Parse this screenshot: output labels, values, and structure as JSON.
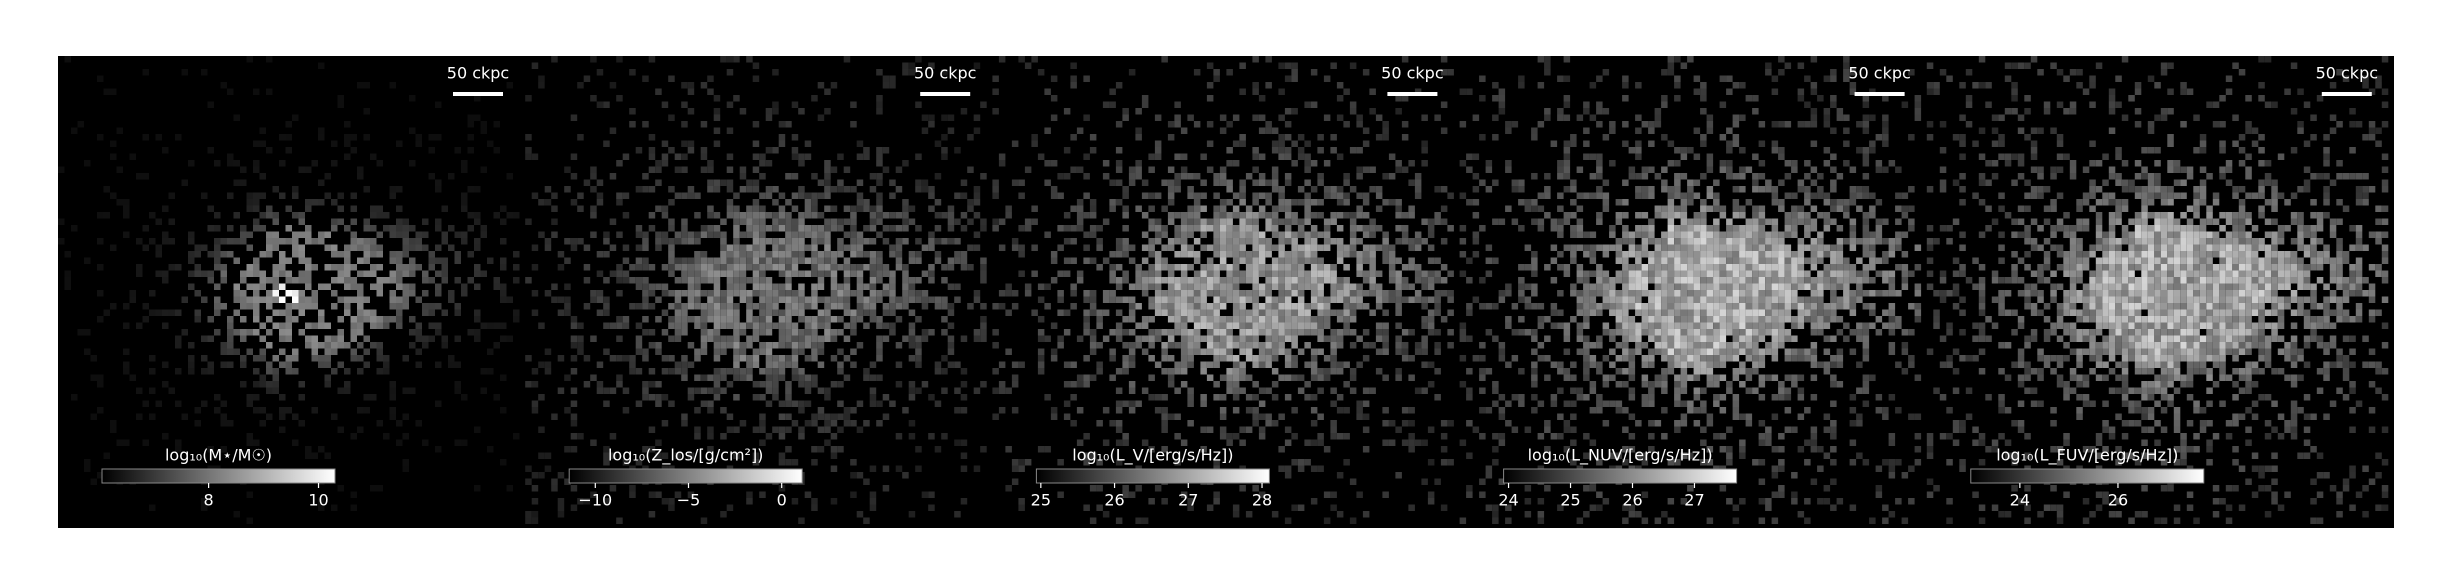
{
  "panels": [
    {
      "scale_label": "50 ckpc",
      "colorbar": {
        "label": "log₁₀(M⋆/M☉)",
        "lim": [
          6.06,
          10.3
        ],
        "ticks": [
          8,
          10
        ]
      }
    },
    {
      "scale_label": "50 ckpc",
      "colorbar": {
        "label": "log₁₀(Z_los/[g/cm²])",
        "lim": [
          -11.4,
          1.1
        ],
        "ticks": [
          {
            "value": -10,
            "label": "−10"
          },
          {
            "value": -5,
            "label": "−5"
          },
          0
        ]
      }
    },
    {
      "scale_label": "50 ckpc",
      "colorbar": {
        "label": "log₁₀(L_V/[erg/s/Hz])",
        "lim": [
          24.94,
          28.1
        ],
        "ticks": [
          25,
          26,
          27,
          28
        ]
      }
    },
    {
      "scale_label": "50 ckpc",
      "colorbar": {
        "label": "log₁₀(L_NUV/[erg/s/Hz])",
        "lim": [
          23.92,
          27.68
        ],
        "ticks": [
          24,
          25,
          26,
          27
        ]
      }
    },
    {
      "scale_label": "50 ckpc",
      "colorbar": {
        "label": "log₁₀(L_FUV/[erg/s/Hz])",
        "lim": [
          23.0,
          27.75
        ],
        "ticks": [
          24,
          26
        ]
      }
    }
  ]
}
